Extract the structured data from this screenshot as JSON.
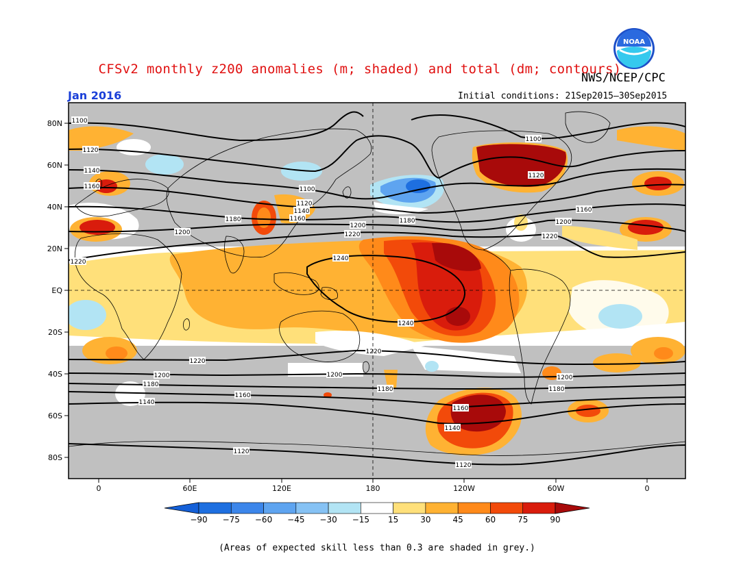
{
  "title": "CFSv2 monthly z200 anomalies (m; shaded) and total (dm; contours)",
  "agency": "NWS/NCEP/CPC",
  "logo_text": "NOAA",
  "month": "Jan 2016",
  "initial_conditions": "Initial conditions: 21Sep2015–30Sep2015",
  "footnote": "(Areas of expected skill less than 0.3 are shaded in grey.)",
  "lat_labels": [
    "80N",
    "60N",
    "40N",
    "20N",
    "EQ",
    "20S",
    "40S",
    "60S",
    "80S"
  ],
  "lon_labels": [
    "0",
    "60E",
    "120E",
    "180",
    "120W",
    "60W",
    "0"
  ],
  "colorbar": {
    "labels": [
      "−90",
      "−75",
      "−60",
      "−45",
      "−30",
      "−15",
      "15",
      "30",
      "45",
      "60",
      "75",
      "90"
    ],
    "colors": [
      "#1e6fe0",
      "#3c86ea",
      "#5ea4f0",
      "#86c2f4",
      "#b2e4f4",
      "#ffffff",
      "#ffe07a",
      "#ffb233",
      "#ff8a1a",
      "#f24a0a",
      "#d91c0c"
    ],
    "low_arrow_color": "#1460d8",
    "high_arrow_color": "#a80a0a"
  },
  "contour_labels": [
    "1100",
    "1100",
    "1120",
    "1120",
    "1140",
    "1160",
    "1180",
    "1200",
    "1220",
    "1240",
    "1100",
    "1120",
    "1140",
    "1160",
    "1180",
    "1200",
    "1220",
    "1240",
    "1220",
    "1200",
    "1180",
    "1160",
    "1140",
    "1120",
    "1120",
    "1200",
    "1180",
    "1160",
    "1140",
    "1220",
    "1200",
    "1180",
    "1160",
    "1200",
    "1220"
  ],
  "colors": {
    "grey_mask": "#c0c0c0",
    "title_red": "#e01010",
    "date_blue": "#1a3fd8"
  }
}
